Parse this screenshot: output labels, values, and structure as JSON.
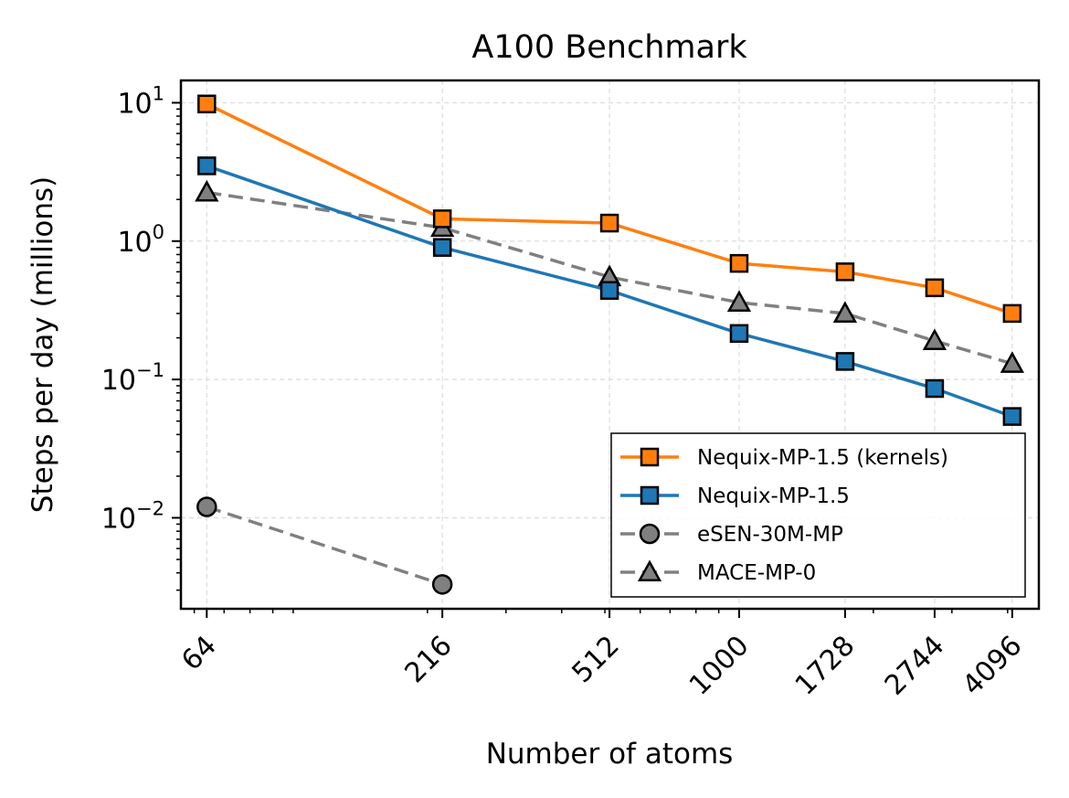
{
  "chart_data": {
    "type": "line",
    "title": "A100 Benchmark",
    "xlabel": "Number of atoms",
    "ylabel": "Steps per day (millions)",
    "x_scale": "log",
    "y_scale": "log",
    "x": [
      64,
      216,
      512,
      1000,
      1728,
      2744,
      4096
    ],
    "x_tick_labels": [
      "64",
      "216",
      "512",
      "1000",
      "1728",
      "2744",
      "4096"
    ],
    "xlim": [
      56,
      4700
    ],
    "ylim": [
      0.0022,
      14.5
    ],
    "y_ticks": [
      {
        "value": 10,
        "base": "10",
        "exp": "1"
      },
      {
        "value": 1,
        "base": "10",
        "exp": "0"
      },
      {
        "value": 0.1,
        "base": "10",
        "exp": "−1"
      },
      {
        "value": 0.01,
        "base": "10",
        "exp": "−2"
      }
    ],
    "grid": true,
    "legend_position": "lower-right",
    "series": [
      {
        "name": "Nequix-MP-1.5 (kernels)",
        "color": "#ff7f0e",
        "marker": "square",
        "dash": "solid",
        "values": [
          9.8,
          1.45,
          1.35,
          0.69,
          0.6,
          0.46,
          0.3
        ]
      },
      {
        "name": "Nequix-MP-1.5",
        "color": "#1f77b4",
        "marker": "square",
        "dash": "solid",
        "values": [
          3.5,
          0.9,
          0.44,
          0.215,
          0.135,
          0.086,
          0.054
        ]
      },
      {
        "name": "eSEN-30M-MP",
        "color": "#808080",
        "marker": "circle",
        "dash": "dashed",
        "values": [
          0.012,
          0.0033,
          null,
          null,
          null,
          null,
          null
        ]
      },
      {
        "name": "MACE-MP-0",
        "color": "#808080",
        "marker": "triangle",
        "dash": "dashed",
        "values": [
          2.25,
          1.25,
          0.55,
          0.36,
          0.3,
          0.19,
          0.13
        ]
      }
    ]
  }
}
